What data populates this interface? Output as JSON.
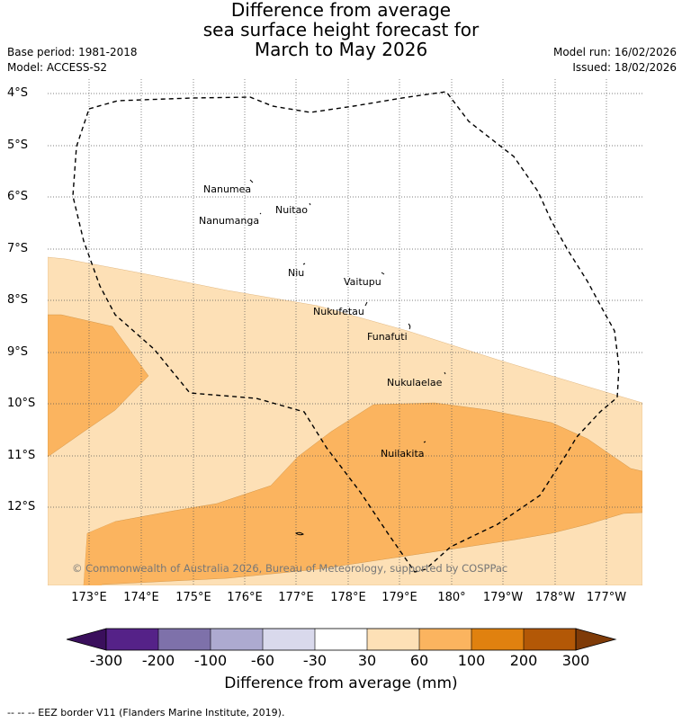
{
  "title_lines": [
    "Difference from average",
    "sea surface height forecast for",
    "March to May 2026"
  ],
  "base_period": "Base period: 1981-2018",
  "model": "Model: ACCESS-S2",
  "model_run": "Model run: 16/02/2026",
  "issued": "Issued: 18/02/2026",
  "latitude_labels": [
    "4°S",
    "5°S",
    "6°S",
    "7°S",
    "8°S",
    "9°S",
    "10°S",
    "11°S",
    "12°S"
  ],
  "longitude_labels": [
    "173°E",
    "174°E",
    "175°E",
    "176°E",
    "177°E",
    "178°E",
    "179°E",
    "180°",
    "179°W",
    "178°W",
    "177°W"
  ],
  "places": [
    {
      "name": "Nanumea",
      "lon": 176.13,
      "lat": -5.67
    },
    {
      "name": "Nuitao",
      "lon": 177.33,
      "lat": -6.11
    },
    {
      "name": "Nanumanga",
      "lon": 176.32,
      "lat": -6.29
    },
    {
      "name": "Niu",
      "lon": 177.15,
      "lat": -7.29
    },
    {
      "name": "Vaitupu",
      "lon": 178.68,
      "lat": -7.48
    },
    {
      "name": "Nukufetau",
      "lon": 178.37,
      "lat": -8.03
    },
    {
      "name": "Funafuti",
      "lon": 179.19,
      "lat": -8.52
    },
    {
      "name": "Nukulaelae",
      "lon": 179.84,
      "lat": -9.38
    },
    {
      "name": "Nuilakita",
      "lon": 179.27,
      "lat": -10.77
    }
  ],
  "copyright": "© Commonwealth of Australia 2026, Bureau of Meteorology, supported by COSPPac",
  "colorbar": {
    "title": "Difference from average (mm)",
    "ticks": [
      "-300",
      "-200",
      "-100",
      "-60",
      "-30",
      "30",
      "60",
      "100",
      "200",
      "300"
    ],
    "colors": [
      "#3a0f5c",
      "#552288",
      "#7e71aa",
      "#adaad0",
      "#d9d9ec",
      "#ffffff",
      "#fde0b6",
      "#fbb45f",
      "#e0810f",
      "#b35806",
      "#7f3b08"
    ]
  },
  "footnote": "-- -- -- EEZ border V11 (Flanders Marine Institute, 2019).",
  "map_colors": {
    "band_30_60": "#fde0b6",
    "band_60_100": "#fbb45f",
    "eez_border": "#000000"
  }
}
